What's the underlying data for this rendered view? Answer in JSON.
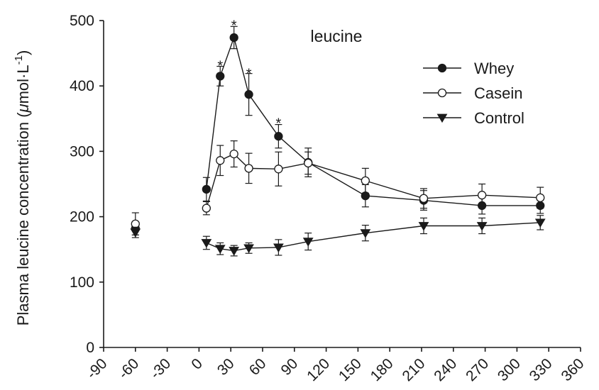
{
  "chart_data": {
    "type": "line",
    "title": "leucine",
    "ylabel": {
      "prefix": "Plasma leucine concentration (",
      "mu": "μ",
      "unit": "mol·L",
      "exponent": "-1",
      "suffix": ")"
    },
    "xlabel": "",
    "xlim": [
      -90,
      360
    ],
    "ylim": [
      0,
      500
    ],
    "xticks": [
      -90,
      -60,
      -30,
      0,
      30,
      60,
      90,
      120,
      150,
      180,
      210,
      240,
      270,
      300,
      330,
      360
    ],
    "yticks": [
      0,
      100,
      200,
      300,
      400,
      500
    ],
    "legend_position": "upper-right",
    "series": [
      {
        "name": "Whey",
        "marker": "filled-circle",
        "points": [
          {
            "x": -60,
            "y": 182,
            "err": 10
          },
          {
            "x": 7,
            "y": 242,
            "err": 18
          },
          {
            "x": 20,
            "y": 415,
            "err": 15
          },
          {
            "x": 33,
            "y": 474,
            "err": 17
          },
          {
            "x": 47,
            "y": 387,
            "err": 32
          },
          {
            "x": 75,
            "y": 323,
            "err": 18
          },
          {
            "x": 103,
            "y": 283,
            "err": 22
          },
          {
            "x": 157,
            "y": 232,
            "err": 17
          },
          {
            "x": 212,
            "y": 225,
            "err": 15
          },
          {
            "x": 267,
            "y": 217,
            "err": 13
          },
          {
            "x": 322,
            "y": 217,
            "err": 12
          }
        ]
      },
      {
        "name": "Casein",
        "marker": "open-circle",
        "points": [
          {
            "x": -60,
            "y": 189,
            "err": 17
          },
          {
            "x": 7,
            "y": 213,
            "err": 10
          },
          {
            "x": 20,
            "y": 286,
            "err": 23
          },
          {
            "x": 33,
            "y": 296,
            "err": 20
          },
          {
            "x": 47,
            "y": 274,
            "err": 23
          },
          {
            "x": 75,
            "y": 273,
            "err": 26
          },
          {
            "x": 103,
            "y": 282,
            "err": 17
          },
          {
            "x": 157,
            "y": 255,
            "err": 19
          },
          {
            "x": 212,
            "y": 228,
            "err": 15
          },
          {
            "x": 267,
            "y": 233,
            "err": 17
          },
          {
            "x": 322,
            "y": 229,
            "err": 16
          }
        ]
      },
      {
        "name": "Control",
        "marker": "filled-triangle-down",
        "points": [
          {
            "x": -60,
            "y": 176,
            "err": 8
          },
          {
            "x": 7,
            "y": 160,
            "err": 10
          },
          {
            "x": 20,
            "y": 151,
            "err": 9
          },
          {
            "x": 33,
            "y": 148,
            "err": 8
          },
          {
            "x": 47,
            "y": 152,
            "err": 8
          },
          {
            "x": 75,
            "y": 153,
            "err": 12
          },
          {
            "x": 103,
            "y": 162,
            "err": 13
          },
          {
            "x": 157,
            "y": 175,
            "err": 12
          },
          {
            "x": 212,
            "y": 186,
            "err": 12
          },
          {
            "x": 267,
            "y": 186,
            "err": 12
          },
          {
            "x": 322,
            "y": 191,
            "err": 11
          }
        ]
      }
    ],
    "annotations": [
      {
        "text": "*",
        "x": 20,
        "y": 430
      },
      {
        "text": "*",
        "x": 33,
        "y": 492
      },
      {
        "text": "*",
        "x": 47,
        "y": 418
      },
      {
        "text": "*",
        "x": 75,
        "y": 342
      }
    ]
  }
}
